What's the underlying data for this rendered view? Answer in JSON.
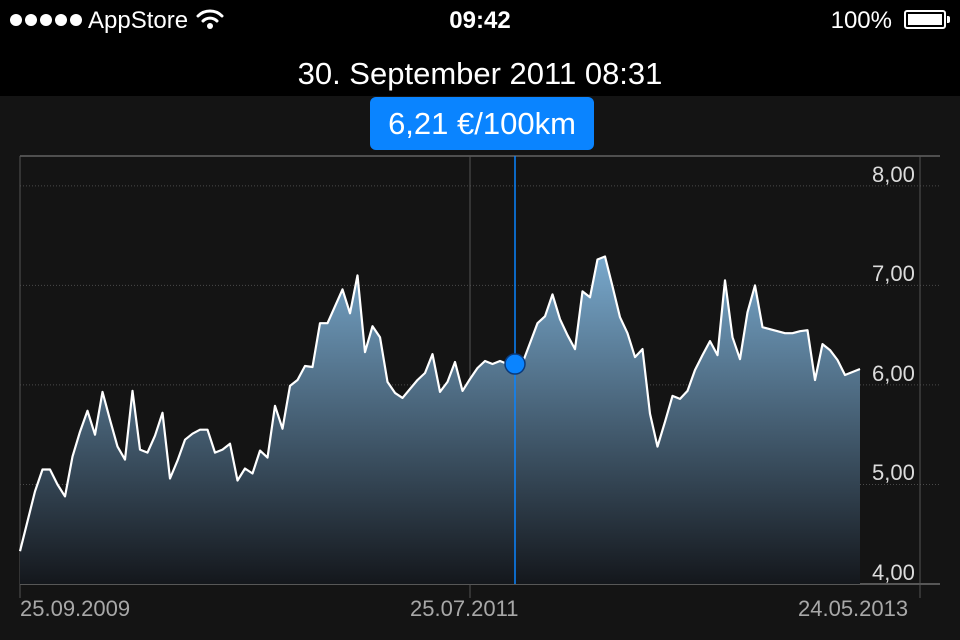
{
  "status_bar": {
    "carrier": "AppStore",
    "time": "09:42",
    "battery": "100%",
    "icons": [
      "signal-dots-icon",
      "wifi-icon",
      "battery-icon"
    ]
  },
  "header": {
    "selected_datetime": "30. September 2011 08:31"
  },
  "selection": {
    "value_label": "6,21 €/100km",
    "accent_color": "#0a84ff"
  },
  "chart_data": {
    "type": "area",
    "title": "",
    "xlabel": "",
    "ylabel": "",
    "ylim": [
      4.0,
      8.3
    ],
    "y_ticks": [
      "4,00",
      "5,00",
      "6,00",
      "7,00",
      "8,00"
    ],
    "y_tick_values": [
      4,
      5,
      6,
      7,
      8
    ],
    "x_tick_labels": [
      "25.09.2009",
      "25.07.2011",
      "24.05.2013"
    ],
    "x_tick_index": [
      0,
      60,
      120
    ],
    "selected_index": 66,
    "selected_value": 6.21,
    "series": [
      {
        "values": [
          4.33,
          4.63,
          4.93,
          5.15,
          5.15,
          5.0,
          4.88,
          5.28,
          5.53,
          5.74,
          5.5,
          5.93,
          5.65,
          5.38,
          5.25,
          5.94,
          5.35,
          5.32,
          5.49,
          5.72,
          5.06,
          5.24,
          5.45,
          5.51,
          5.55,
          5.55,
          5.32,
          5.35,
          5.41,
          5.04,
          5.16,
          5.11,
          5.34,
          5.27,
          5.79,
          5.56,
          5.99,
          6.05,
          6.19,
          6.18,
          6.62,
          6.62,
          6.79,
          6.96,
          6.72,
          7.1,
          6.33,
          6.59,
          6.48,
          6.03,
          5.92,
          5.87,
          5.96,
          6.05,
          6.12,
          6.31,
          5.93,
          6.03,
          6.23,
          5.94,
          6.06,
          6.17,
          6.24,
          6.21,
          6.24,
          6.21,
          6.21,
          6.22,
          6.42,
          6.62,
          6.69,
          6.91,
          6.66,
          6.5,
          6.36,
          6.94,
          6.88,
          7.26,
          7.29,
          6.99,
          6.68,
          6.52,
          6.28,
          6.36,
          5.71,
          5.38,
          5.63,
          5.89,
          5.86,
          5.94,
          6.15,
          6.3,
          6.44,
          6.3,
          7.05,
          6.48,
          6.26,
          6.73,
          7.0,
          6.58,
          6.56,
          6.54,
          6.52,
          6.52,
          6.54,
          6.55,
          6.05,
          6.41,
          6.35,
          6.25,
          6.1,
          6.13,
          6.16
        ]
      }
    ]
  }
}
